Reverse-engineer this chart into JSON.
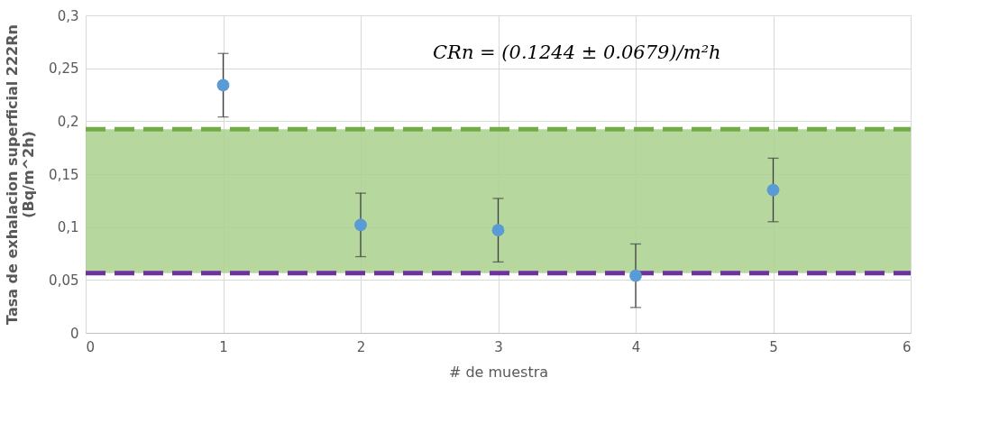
{
  "chart_data": {
    "type": "scatter",
    "xlabel": "# de muestra",
    "ylabel": "Tasa de exhalacion superficial 222Rn\n(Bq/m^2h)",
    "x": [
      1,
      2,
      3,
      4,
      5
    ],
    "series": [
      {
        "color": "#5b9bd5",
        "values": [
          0.234,
          0.102,
          0.097,
          0.054,
          0.135
        ],
        "errors": [
          0.03,
          0.03,
          0.03,
          0.03,
          0.03
        ]
      }
    ],
    "xlim": [
      0,
      6
    ],
    "xticks": [
      0,
      1,
      2,
      3,
      4,
      5,
      6
    ],
    "ylim": [
      0,
      0.3
    ],
    "yticks": [
      0,
      {
        "value": 0.05,
        "label": "0,05"
      },
      {
        "value": 0.1,
        "label": "0,1"
      },
      {
        "value": 0.15,
        "label": "0,15"
      },
      {
        "value": 0.2,
        "label": "0,2"
      },
      {
        "value": 0.25,
        "label": "0,25"
      },
      {
        "value": 0.3,
        "label": "0,3"
      }
    ],
    "bands": [
      {
        "axis": "y",
        "from": 0.0565,
        "to": 0.1923,
        "color": "#a9d18e"
      }
    ],
    "ref_lines": [
      {
        "axis": "y",
        "value": 0.1923,
        "color": "#70ad47",
        "line_style": "dashed"
      },
      {
        "axis": "y",
        "value": 0.0565,
        "color": "#7030a0",
        "line_style": "dashed"
      }
    ],
    "annotations": [
      "CRn = (0.1244 ± 0.0679)/m²h"
    ],
    "grid": true,
    "marker": "circle"
  }
}
